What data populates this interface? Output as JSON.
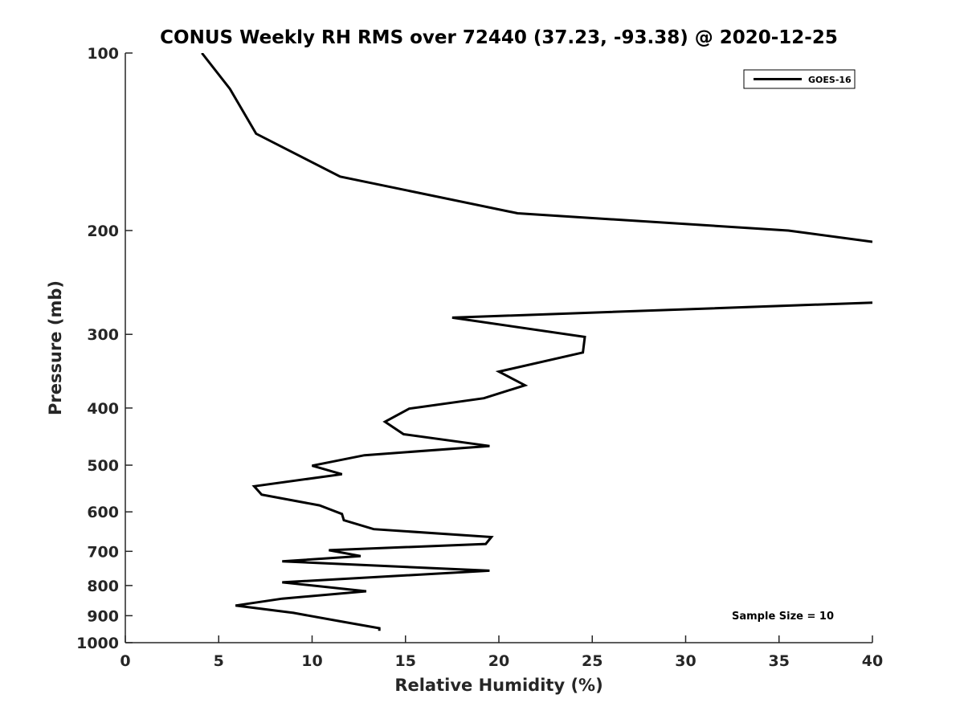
{
  "chart_data": {
    "type": "line",
    "title": "CONUS Weekly RH RMS over 72440 (37.23, -93.38) @ 2020-12-25",
    "xlabel": "Relative Humidity (%)",
    "ylabel": "Pressure (mb)",
    "xlim": [
      0,
      40
    ],
    "ylim": [
      100,
      1000
    ],
    "yscale": "log",
    "y_reversed": true,
    "x_ticks": [
      0,
      5,
      10,
      15,
      20,
      25,
      30,
      35,
      40
    ],
    "x_tick_labels": [
      "0",
      "5",
      "10",
      "15",
      "20",
      "25",
      "30",
      "35",
      "40"
    ],
    "y_ticks": [
      100,
      200,
      300,
      400,
      500,
      600,
      700,
      800,
      900,
      1000
    ],
    "y_tick_labels": [
      "100",
      "200",
      "300",
      "400",
      "500",
      "600",
      "700",
      "800",
      "900",
      "1000"
    ],
    "grid": false,
    "legend_position": "top-right",
    "annotation": "Sample Size = 10",
    "series": [
      {
        "name": "GOES-16",
        "color": "#000000",
        "x": [
          4.1,
          5.6,
          7.0,
          11.5,
          21.0,
          35.5,
          40.0,
          null,
          40.0,
          17.5,
          24.6,
          24.5,
          20.0,
          21.4,
          19.2,
          15.2,
          13.9,
          14.9,
          19.5,
          12.8,
          10.0,
          11.6,
          6.9,
          7.3,
          10.4,
          11.6,
          11.7,
          13.3,
          19.6,
          19.3,
          10.9,
          12.6,
          8.4,
          19.5,
          8.4,
          12.9,
          8.4,
          5.9,
          9.0,
          11.5,
          13.6,
          13.6
        ],
        "y": [
          100,
          115,
          137,
          162,
          187,
          200,
          209,
          null,
          265,
          281,
          303,
          322,
          347,
          366,
          385,
          401,
          422,
          443,
          464,
          481,
          501,
          518,
          543,
          561,
          585,
          605,
          620,
          642,
          662,
          680,
          697,
          713,
          728,
          755,
          790,
          818,
          842,
          865,
          890,
          920,
          945,
          955
        ]
      }
    ]
  }
}
